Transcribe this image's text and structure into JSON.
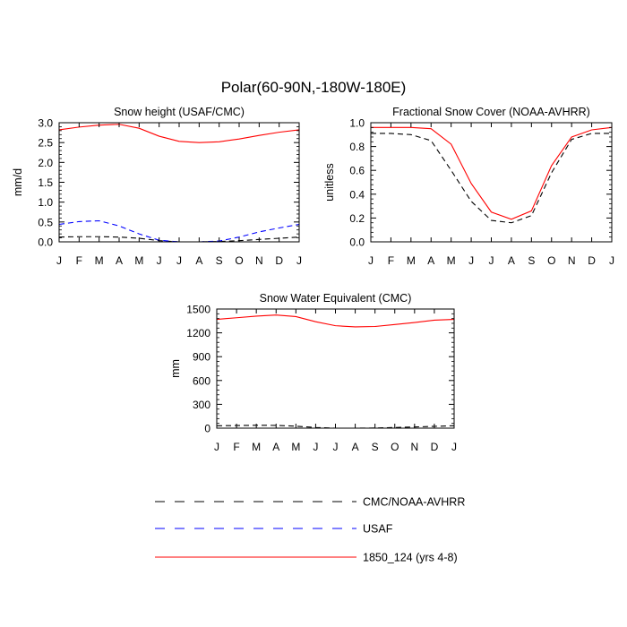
{
  "figure": {
    "title": "Polar(60-90N,-180W-180E)"
  },
  "legend": [
    {
      "label": "CMC/NOAA-AVHRR",
      "color": "#000000",
      "dash": "dashed"
    },
    {
      "label": "USAF",
      "color": "#0000ff",
      "dash": "dashed"
    },
    {
      "label": "1850_124 (yrs 4-8)",
      "color": "#ff0000",
      "dash": "solid"
    }
  ],
  "chart_data": [
    {
      "type": "line",
      "title": "Snow height (USAF/CMC)",
      "xlabel": "",
      "ylabel": "mm/d",
      "categories": [
        "J",
        "F",
        "M",
        "A",
        "M",
        "J",
        "J",
        "A",
        "S",
        "O",
        "N",
        "D",
        "J"
      ],
      "ylim": [
        0,
        3.0
      ],
      "yticks": [
        "0.0",
        "0.5",
        "1.0",
        "1.5",
        "2.0",
        "2.5",
        "3.0"
      ],
      "series": [
        {
          "name": "1850_124 (yrs 4-8)",
          "color": "#ff0000",
          "dash": "solid",
          "values": [
            2.82,
            2.89,
            2.94,
            2.96,
            2.86,
            2.66,
            2.53,
            2.5,
            2.52,
            2.59,
            2.68,
            2.76,
            2.82
          ]
        },
        {
          "name": "USAF",
          "color": "#0000ff",
          "dash": "dashed",
          "values": [
            0.44,
            0.51,
            0.53,
            0.4,
            0.2,
            0.04,
            0.0,
            0.0,
            0.02,
            0.12,
            0.25,
            0.35,
            0.44
          ]
        },
        {
          "name": "CMC/NOAA-AVHRR",
          "color": "#000000",
          "dash": "dashed",
          "values": [
            0.12,
            0.13,
            0.13,
            0.12,
            0.09,
            0.03,
            0.0,
            0.0,
            0.01,
            0.03,
            0.06,
            0.09,
            0.12
          ]
        }
      ]
    },
    {
      "type": "line",
      "title": "Fractional Snow Cover (NOAA-AVHRR)",
      "xlabel": "",
      "ylabel": "unitless",
      "categories": [
        "J",
        "F",
        "M",
        "A",
        "M",
        "J",
        "J",
        "A",
        "S",
        "O",
        "N",
        "D",
        "J"
      ],
      "ylim": [
        0,
        1.0
      ],
      "yticks": [
        "0.0",
        "0.2",
        "0.4",
        "0.6",
        "0.8",
        "1.0"
      ],
      "series": [
        {
          "name": "1850_124 (yrs 4-8)",
          "color": "#ff0000",
          "dash": "solid",
          "values": [
            0.96,
            0.96,
            0.96,
            0.95,
            0.82,
            0.49,
            0.25,
            0.19,
            0.26,
            0.64,
            0.88,
            0.94,
            0.96
          ]
        },
        {
          "name": "CMC/NOAA-AVHRR",
          "color": "#000000",
          "dash": "dashed",
          "values": [
            0.91,
            0.91,
            0.9,
            0.85,
            0.6,
            0.34,
            0.18,
            0.16,
            0.22,
            0.58,
            0.86,
            0.91,
            0.91
          ]
        }
      ]
    },
    {
      "type": "line",
      "title": "Snow Water Equivalent (CMC)",
      "xlabel": "",
      "ylabel": "mm",
      "categories": [
        "J",
        "F",
        "M",
        "A",
        "M",
        "J",
        "J",
        "A",
        "S",
        "O",
        "N",
        "D",
        "J"
      ],
      "ylim": [
        0,
        1500
      ],
      "yticks": [
        "0",
        "300",
        "600",
        "900",
        "1200",
        "1500"
      ],
      "series": [
        {
          "name": "1850_124 (yrs 4-8)",
          "color": "#ff0000",
          "dash": "solid",
          "values": [
            1370,
            1390,
            1410,
            1425,
            1405,
            1340,
            1290,
            1275,
            1280,
            1305,
            1330,
            1360,
            1370
          ]
        },
        {
          "name": "CMC/NOAA-AVHRR",
          "color": "#000000",
          "dash": "dashed",
          "values": [
            30,
            33,
            36,
            35,
            25,
            8,
            0,
            0,
            2,
            8,
            15,
            23,
            30
          ]
        }
      ]
    }
  ]
}
